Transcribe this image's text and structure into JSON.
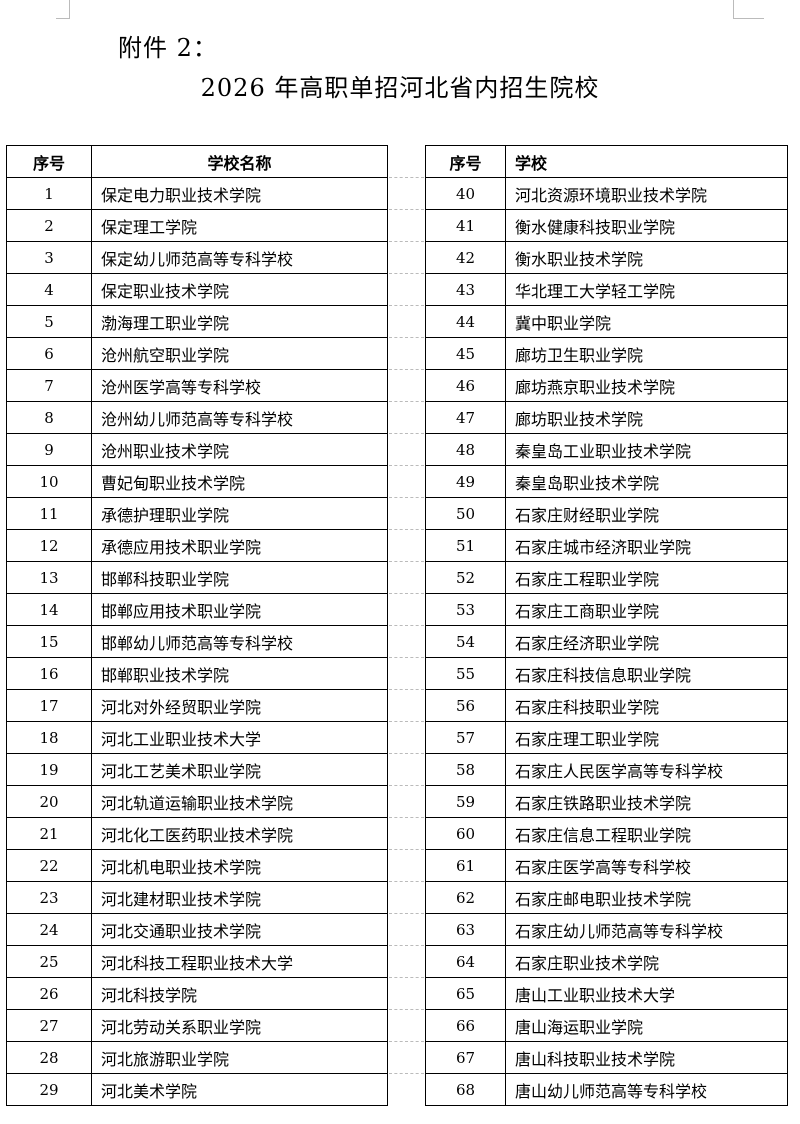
{
  "attachment_label": "附件 2：",
  "title": "2026 年高职单招河北省内招生院校",
  "left_table": {
    "headers": [
      "序号",
      "学校名称"
    ],
    "rows": [
      [
        "1",
        "保定电力职业技术学院"
      ],
      [
        "2",
        "保定理工学院"
      ],
      [
        "3",
        "保定幼儿师范高等专科学校"
      ],
      [
        "4",
        "保定职业技术学院"
      ],
      [
        "5",
        "渤海理工职业学院"
      ],
      [
        "6",
        "沧州航空职业学院"
      ],
      [
        "7",
        "沧州医学高等专科学校"
      ],
      [
        "8",
        "沧州幼儿师范高等专科学校"
      ],
      [
        "9",
        "沧州职业技术学院"
      ],
      [
        "10",
        "曹妃甸职业技术学院"
      ],
      [
        "11",
        "承德护理职业学院"
      ],
      [
        "12",
        "承德应用技术职业学院"
      ],
      [
        "13",
        "邯郸科技职业学院"
      ],
      [
        "14",
        "邯郸应用技术职业学院"
      ],
      [
        "15",
        "邯郸幼儿师范高等专科学校"
      ],
      [
        "16",
        "邯郸职业技术学院"
      ],
      [
        "17",
        "河北对外经贸职业学院"
      ],
      [
        "18",
        "河北工业职业技术大学"
      ],
      [
        "19",
        "河北工艺美术职业学院"
      ],
      [
        "20",
        "河北轨道运输职业技术学院"
      ],
      [
        "21",
        "河北化工医药职业技术学院"
      ],
      [
        "22",
        "河北机电职业技术学院"
      ],
      [
        "23",
        "河北建材职业技术学院"
      ],
      [
        "24",
        "河北交通职业技术学院"
      ],
      [
        "25",
        "河北科技工程职业技术大学"
      ],
      [
        "26",
        "河北科技学院"
      ],
      [
        "27",
        "河北劳动关系职业学院"
      ],
      [
        "28",
        "河北旅游职业学院"
      ],
      [
        "29",
        "河北美术学院"
      ]
    ]
  },
  "right_table": {
    "headers": [
      "序号",
      "学校"
    ],
    "rows": [
      [
        "40",
        "河北资源环境职业技术学院"
      ],
      [
        "41",
        "衡水健康科技职业学院"
      ],
      [
        "42",
        "衡水职业技术学院"
      ],
      [
        "43",
        "华北理工大学轻工学院"
      ],
      [
        "44",
        "冀中职业学院"
      ],
      [
        "45",
        "廊坊卫生职业学院"
      ],
      [
        "46",
        "廊坊燕京职业技术学院"
      ],
      [
        "47",
        "廊坊职业技术学院"
      ],
      [
        "48",
        "秦皇岛工业职业技术学院"
      ],
      [
        "49",
        "秦皇岛职业技术学院"
      ],
      [
        "50",
        "石家庄财经职业学院"
      ],
      [
        "51",
        "石家庄城市经济职业学院"
      ],
      [
        "52",
        "石家庄工程职业学院"
      ],
      [
        "53",
        "石家庄工商职业学院"
      ],
      [
        "54",
        "石家庄经济职业学院"
      ],
      [
        "55",
        "石家庄科技信息职业学院"
      ],
      [
        "56",
        "石家庄科技职业学院"
      ],
      [
        "57",
        "石家庄理工职业学院"
      ],
      [
        "58",
        "石家庄人民医学高等专科学校"
      ],
      [
        "59",
        "石家庄铁路职业技术学院"
      ],
      [
        "60",
        "石家庄信息工程职业学院"
      ],
      [
        "61",
        "石家庄医学高等专科学校"
      ],
      [
        "62",
        "石家庄邮电职业技术学院"
      ],
      [
        "63",
        "石家庄幼儿师范高等专科学校"
      ],
      [
        "64",
        "石家庄职业技术学院"
      ],
      [
        "65",
        "唐山工业职业技术大学"
      ],
      [
        "66",
        "唐山海运职业学院"
      ],
      [
        "67",
        "唐山科技职业技术学院"
      ],
      [
        "68",
        "唐山幼儿师范高等专科学校"
      ]
    ]
  }
}
